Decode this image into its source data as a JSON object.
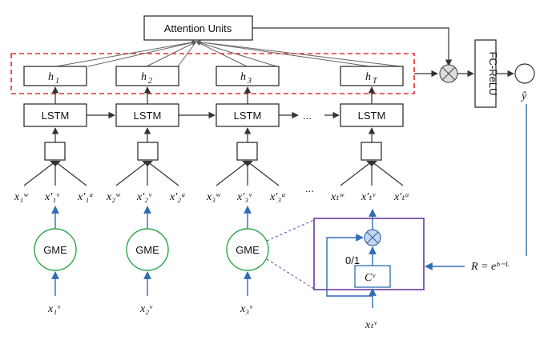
{
  "attention": {
    "label": "Attention Units"
  },
  "lstm_label": "LSTM",
  "fc_label": "FC-ReLU",
  "gme_label": "GME",
  "hidden": [
    {
      "base": "h",
      "sub": "1"
    },
    {
      "base": "h",
      "sub": "2"
    },
    {
      "base": "h",
      "sub": "3"
    },
    {
      "base": "h",
      "sub": "T"
    }
  ],
  "ellipsis": "...",
  "inputs": [
    {
      "w": "x₁ʷ",
      "v": "x′₁ᵛ",
      "a": "x′₁ᵃ"
    },
    {
      "w": "x₂ʷ",
      "v": "x′₂ᵛ",
      "a": "x′₂ᵃ"
    },
    {
      "w": "x₃ʷ",
      "v": "x′₃ᵛ",
      "a": "x′₃ᵃ"
    },
    {
      "w": "xₜʷ",
      "v": "x′ₜᵛ",
      "a": "x′ₜᵃ"
    }
  ],
  "raw_inputs": [
    "x₁ᵛ",
    "x₂ᵛ",
    "x₃ᵛ"
  ],
  "detail": {
    "gate_label": "0/1",
    "cv_label": "Cᵛ",
    "input_label": "xₜᵛ"
  },
  "reward": "R = eᵇ⁻ᴸ",
  "output": "ŷ"
}
